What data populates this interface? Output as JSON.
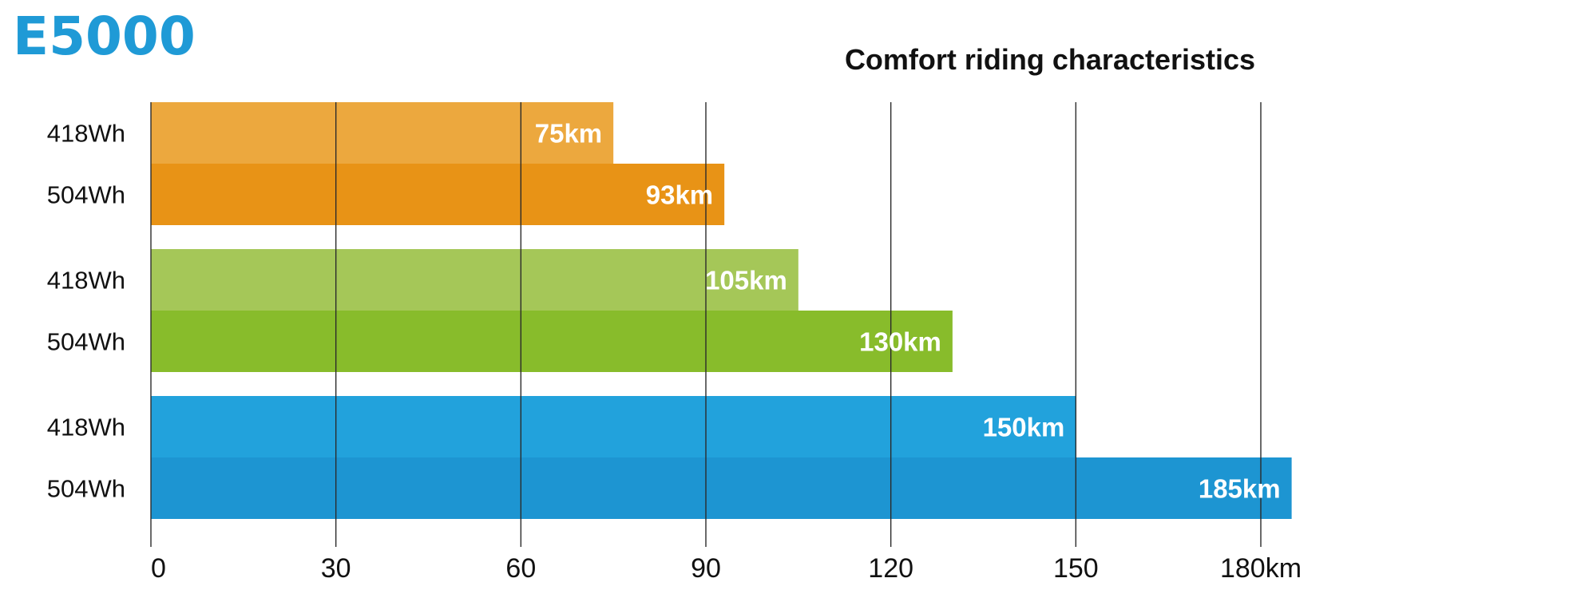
{
  "header": {
    "model": "E5000",
    "heading_color": "#1f9ad6"
  },
  "chart_data": {
    "type": "bar",
    "orientation": "horizontal",
    "title": "Comfort riding characteristics",
    "xlabel": "",
    "ylabel": "",
    "x_unit": "km",
    "xlim": [
      0,
      180
    ],
    "x_ticks": [
      {
        "value": 0,
        "label": "0"
      },
      {
        "value": 30,
        "label": "30"
      },
      {
        "value": 60,
        "label": "60"
      },
      {
        "value": 90,
        "label": "90"
      },
      {
        "value": 120,
        "label": "120"
      },
      {
        "value": 150,
        "label": "150"
      },
      {
        "value": 180,
        "label": "180km"
      }
    ],
    "grid": true,
    "legend": "none",
    "groups": [
      {
        "bars": [
          {
            "category": "418Wh",
            "value": 75,
            "label": "75km",
            "color": "#eca83e"
          },
          {
            "category": "504Wh",
            "value": 93,
            "label": "93km",
            "color": "#e89316"
          }
        ]
      },
      {
        "bars": [
          {
            "category": "418Wh",
            "value": 105,
            "label": "105km",
            "color": "#a5c758"
          },
          {
            "category": "504Wh",
            "value": 130,
            "label": "130km",
            "color": "#88bc2b"
          }
        ]
      },
      {
        "bars": [
          {
            "category": "418Wh",
            "value": 150,
            "label": "150km",
            "color": "#22a2dc"
          },
          {
            "category": "504Wh",
            "value": 185,
            "label": "185km",
            "color": "#1d95d2"
          }
        ]
      }
    ]
  }
}
